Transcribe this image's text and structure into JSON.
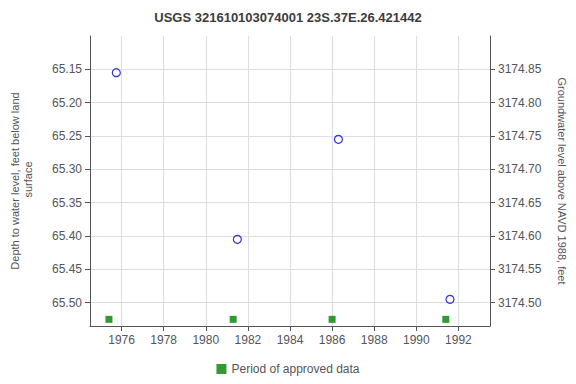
{
  "chart_data": {
    "type": "scatter",
    "title": "USGS 321610103074001 23S.37E.26.421442",
    "xlabel": null,
    "ylabel": "Depth to water level, feet below land\n surface",
    "y2label": "Groundwater level above NAVD 1988, feet",
    "xlim": [
      1974.5,
      1993.5
    ],
    "xticks": [
      1976,
      1978,
      1980,
      1982,
      1984,
      1986,
      1988,
      1990,
      1992
    ],
    "ylim": [
      65.535,
      65.1
    ],
    "yticks": [
      65.15,
      {
        "value": 65.2,
        "label": "65.20"
      },
      65.25,
      {
        "value": 65.3,
        "label": "65.30"
      },
      65.35,
      {
        "value": 65.4,
        "label": "65.40"
      },
      65.45,
      {
        "value": 65.5,
        "label": "65.50"
      }
    ],
    "y2lim": [
      3174.465,
      3174.9
    ],
    "y2ticks": [
      3174.85,
      {
        "value": 3174.8,
        "label": "3174.80"
      },
      3174.75,
      {
        "value": 3174.7,
        "label": "3174.70"
      },
      3174.65,
      {
        "value": 3174.6,
        "label": "3174.60"
      },
      3174.55,
      {
        "value": 3174.5,
        "label": "3174.50"
      }
    ],
    "series": [
      {
        "x": [
          1975.75,
          1981.5,
          1986.3,
          1991.6
        ],
        "values": [
          65.155,
          65.405,
          65.255,
          65.495
        ],
        "color": "#0000cc",
        "marker": "circle-open"
      },
      {
        "name": "Period of approved data",
        "x": [
          1975.4,
          1981.3,
          1986.0,
          1991.4
        ],
        "values": [
          65.525,
          65.525,
          65.525,
          65.525
        ],
        "color": "#008000",
        "marker": "square"
      }
    ],
    "grid": true,
    "legend": "bottom"
  }
}
